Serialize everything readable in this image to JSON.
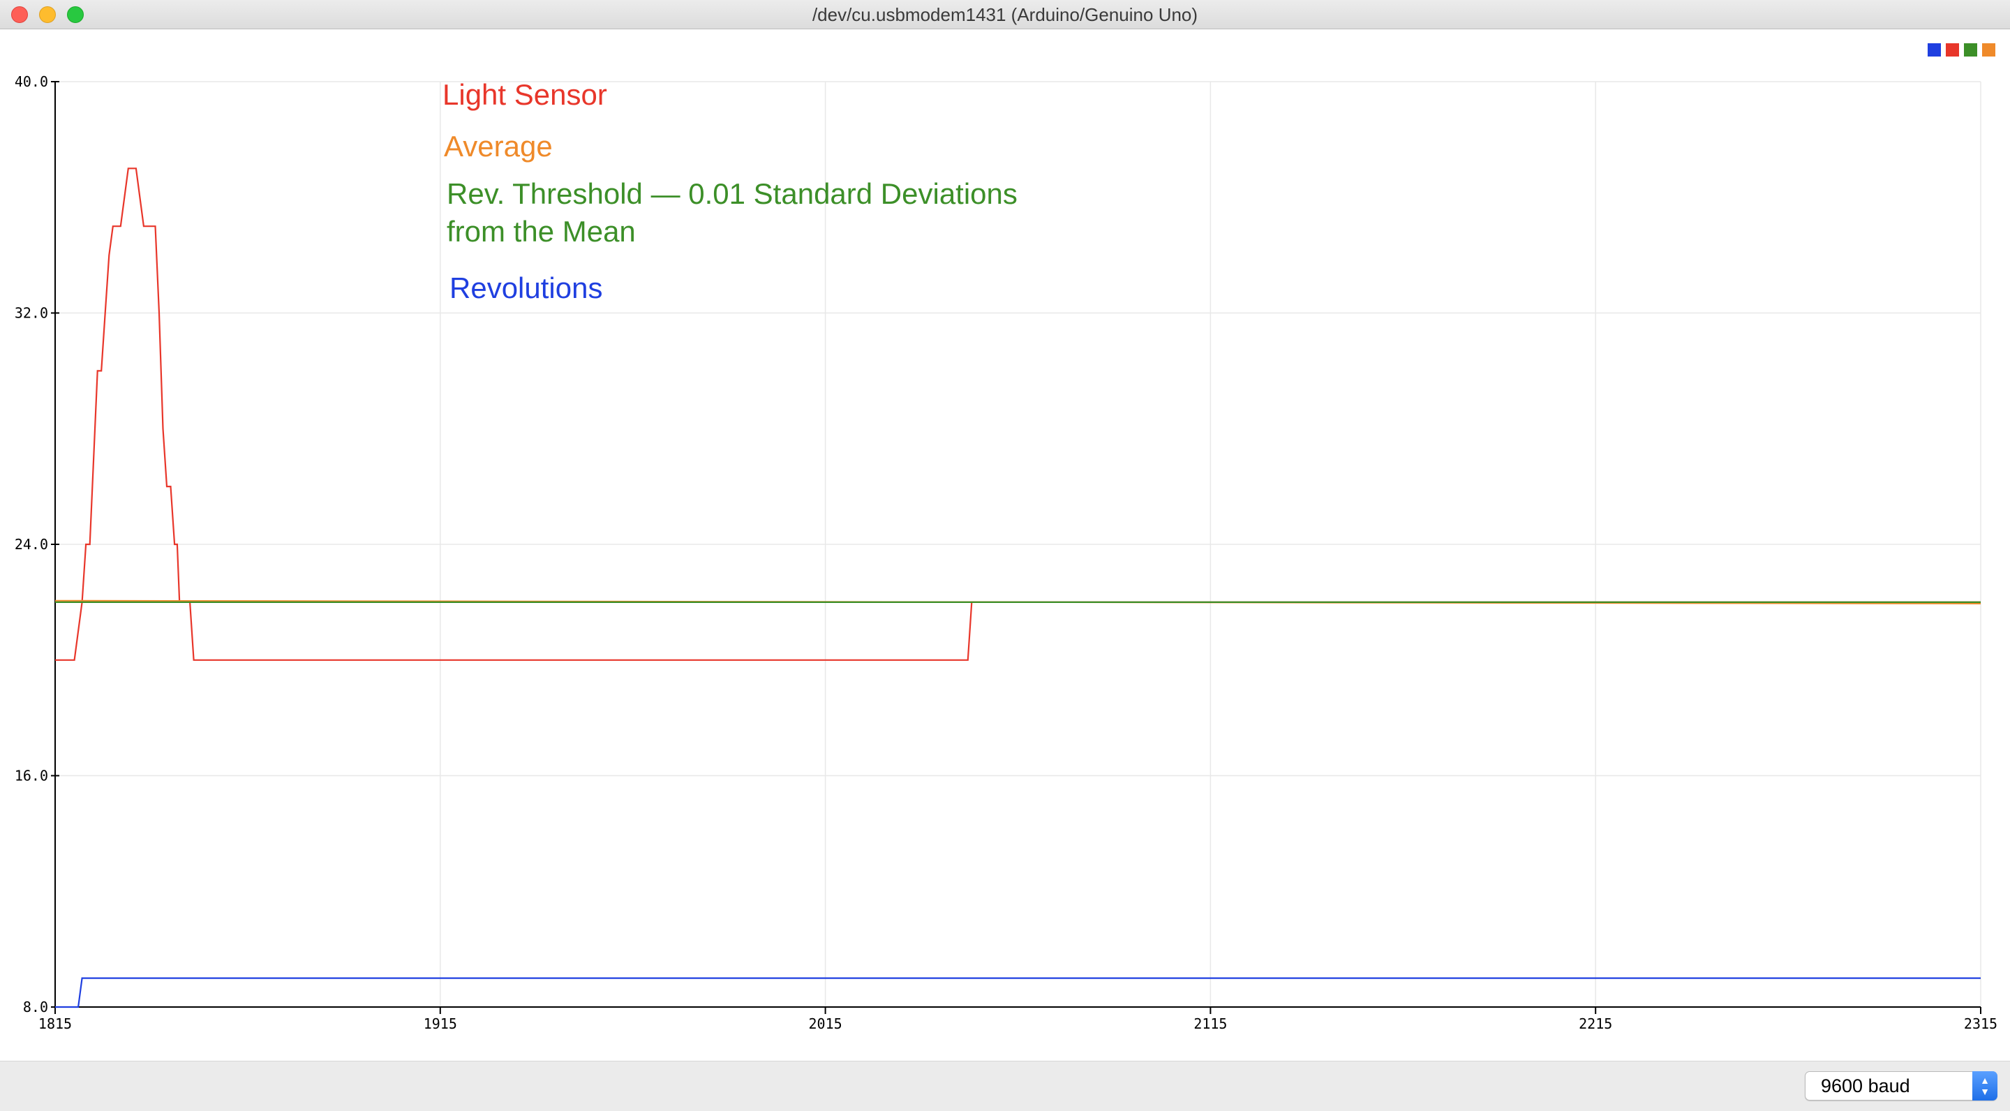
{
  "window": {
    "title": "/dev/cu.usbmodem1431 (Arduino/Genuino Uno)"
  },
  "toolbar": {
    "baud_label": "9600 baud"
  },
  "colors": {
    "light_sensor": "#e8362a",
    "average": "#ef8a2a",
    "threshold": "#3c8f28",
    "revolutions": "#1f3fe0"
  },
  "icons": {
    "stepper": "up-down-chevron-icon"
  },
  "chart_data": {
    "type": "line",
    "xlim": [
      1815,
      2315
    ],
    "ylim": [
      8.0,
      40.0
    ],
    "x_ticks": [
      "1815",
      "1915",
      "2015",
      "2115",
      "2215",
      "2315"
    ],
    "y_ticks": [
      "8.0",
      "16.0",
      "24.0",
      "32.0",
      "40.0"
    ],
    "grid": true,
    "legend_swatches": [
      "#1f3fe0",
      "#e8362a",
      "#3c8f28",
      "#ef8a2a"
    ],
    "labels": [
      {
        "text": "Light Sensor",
        "color": "#e8362a"
      },
      {
        "text": "Average",
        "color": "#ef8a2a"
      },
      {
        "text": "Rev. Threshold — 0.01 Standard Deviations",
        "color": "#3c8f28"
      },
      {
        "text": "from the Mean",
        "color": "#3c8f28"
      },
      {
        "text": "Revolutions",
        "color": "#1f3fe0"
      }
    ],
    "series": [
      {
        "name": "Light Sensor",
        "color": "#e8362a",
        "step": true,
        "points": [
          [
            1815,
            20
          ],
          [
            1820,
            20
          ],
          [
            1822,
            22
          ],
          [
            1823,
            24
          ],
          [
            1824,
            24
          ],
          [
            1825,
            27
          ],
          [
            1826,
            30
          ],
          [
            1827,
            30
          ],
          [
            1828,
            32
          ],
          [
            1829,
            34
          ],
          [
            1830,
            35
          ],
          [
            1831,
            35
          ],
          [
            1832,
            35
          ],
          [
            1833,
            36
          ],
          [
            1834,
            37
          ],
          [
            1835,
            37
          ],
          [
            1836,
            37
          ],
          [
            1837,
            36
          ],
          [
            1838,
            35
          ],
          [
            1839,
            35
          ],
          [
            1840,
            35
          ],
          [
            1841,
            35
          ],
          [
            1842,
            32
          ],
          [
            1843,
            28
          ],
          [
            1844,
            26
          ],
          [
            1845,
            26
          ],
          [
            1846,
            24
          ],
          [
            1846.7,
            24
          ],
          [
            1847.3,
            22
          ],
          [
            1850,
            22
          ],
          [
            1851,
            20
          ],
          [
            2052,
            20
          ],
          [
            2053,
            22
          ],
          [
            2315,
            22
          ]
        ]
      },
      {
        "name": "Average",
        "color": "#ef8a2a",
        "points": [
          [
            1815,
            22.05
          ],
          [
            2315,
            21.95
          ]
        ]
      },
      {
        "name": "Rev. Threshold — 0.01 Standard Deviations from the Mean",
        "color": "#3c8f28",
        "points": [
          [
            1815,
            22.0
          ],
          [
            2315,
            22.0
          ]
        ]
      },
      {
        "name": "Revolutions",
        "color": "#1f3fe0",
        "step": true,
        "points": [
          [
            1815,
            8
          ],
          [
            1821,
            8
          ],
          [
            1822,
            9
          ],
          [
            2315,
            9
          ]
        ]
      }
    ]
  }
}
